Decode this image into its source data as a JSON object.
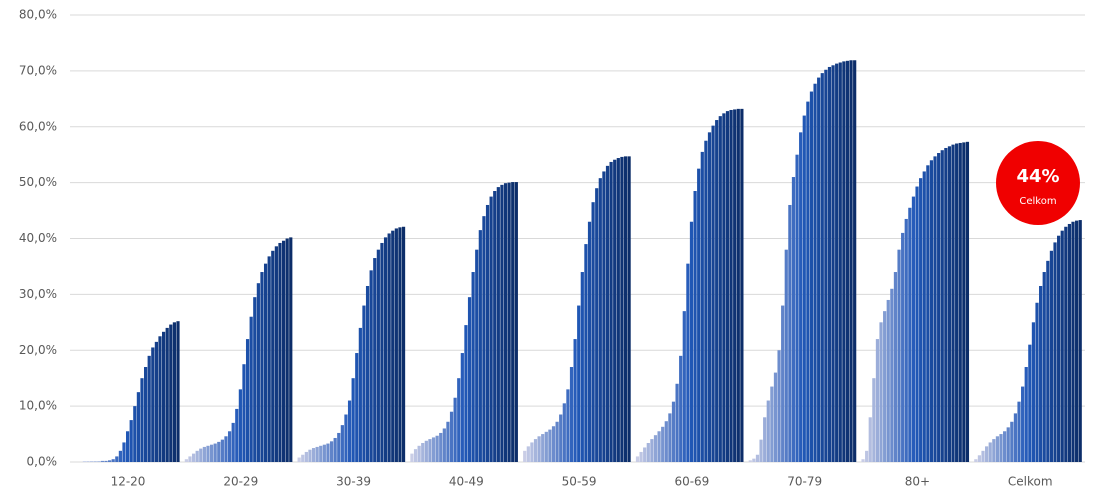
{
  "chart_data": {
    "type": "bar",
    "categories": [
      "12-20",
      "20-29",
      "30-39",
      "40-49",
      "50-59",
      "60-69",
      "70-79",
      "80+",
      "Celkom"
    ],
    "values": [
      [
        0,
        0,
        0,
        0.1,
        0.1,
        0.1,
        0.1,
        0.1,
        0.2,
        0.2,
        0.3,
        0.5,
        1,
        2,
        3.5,
        5.5,
        7.5,
        10,
        12.5,
        15,
        17,
        19,
        20.5,
        21.5,
        22.5,
        23.3,
        24,
        24.6,
        25,
        25.2
      ],
      [
        0.5,
        1,
        1.5,
        2,
        2.4,
        2.7,
        2.9,
        3.1,
        3.3,
        3.6,
        4,
        4.6,
        5.5,
        7,
        9.5,
        13,
        17.5,
        22,
        26,
        29.5,
        32,
        34,
        35.5,
        36.8,
        37.8,
        38.6,
        39.2,
        39.6,
        40,
        40.2
      ],
      [
        0.8,
        1.3,
        1.8,
        2.2,
        2.5,
        2.7,
        2.9,
        3.1,
        3.3,
        3.7,
        4.3,
        5.2,
        6.6,
        8.5,
        11,
        15,
        19.5,
        24,
        28,
        31.5,
        34.3,
        36.5,
        38,
        39.2,
        40.2,
        40.9,
        41.4,
        41.8,
        42,
        42.1
      ],
      [
        1.5,
        2.3,
        2.9,
        3.4,
        3.8,
        4.1,
        4.4,
        4.7,
        5.2,
        6,
        7.2,
        9,
        11.5,
        15,
        19.5,
        24.5,
        29.5,
        34,
        38,
        41.5,
        44,
        46,
        47.5,
        48.5,
        49.2,
        49.6,
        49.9,
        50,
        50.1,
        50.1
      ],
      [
        2,
        2.8,
        3.5,
        4.1,
        4.6,
        5,
        5.4,
        5.8,
        6.4,
        7.2,
        8.5,
        10.5,
        13,
        17,
        22,
        28,
        34,
        39,
        43,
        46.5,
        49,
        50.8,
        52,
        53,
        53.7,
        54.1,
        54.4,
        54.6,
        54.7,
        54.7
      ],
      [
        1,
        1.8,
        2.6,
        3.4,
        4.1,
        4.8,
        5.5,
        6.3,
        7.3,
        8.7,
        10.8,
        14,
        19,
        27,
        35.5,
        43,
        48.5,
        52.5,
        55.5,
        57.5,
        59,
        60.2,
        61.2,
        61.9,
        62.4,
        62.8,
        63,
        63.1,
        63.2,
        63.2
      ],
      [
        0.3,
        0.6,
        1.3,
        4,
        8,
        11,
        13.5,
        16,
        20,
        28,
        38,
        46,
        51,
        55,
        59,
        62,
        64.5,
        66.3,
        67.7,
        68.8,
        69.6,
        70.2,
        70.7,
        71,
        71.3,
        71.5,
        71.7,
        71.8,
        71.9,
        71.9
      ],
      [
        0.5,
        2,
        8,
        15,
        22,
        25,
        27,
        29,
        31,
        34,
        38,
        41,
        43.5,
        45.5,
        47.5,
        49.3,
        50.8,
        52,
        53.1,
        54,
        54.7,
        55.3,
        55.8,
        56.2,
        56.5,
        56.8,
        57,
        57.1,
        57.2,
        57.3
      ],
      [
        0.5,
        1.2,
        2,
        2.8,
        3.5,
        4.1,
        4.6,
        5,
        5.5,
        6.2,
        7.2,
        8.7,
        10.8,
        13.5,
        17,
        21,
        25,
        28.5,
        31.5,
        34,
        36,
        37.8,
        39.3,
        40.5,
        41.4,
        42.1,
        42.6,
        43,
        43.2,
        43.3
      ]
    ],
    "colors": [
      "#c9cde6",
      "#2158b8",
      "#0c2d69"
    ],
    "ylim": [
      0,
      80
    ],
    "yticks": [
      {
        "value": 0,
        "label": "0,0%"
      },
      {
        "value": 10,
        "label": "10,0%"
      },
      {
        "value": 20,
        "label": "20,0%"
      },
      {
        "value": 30,
        "label": "30,0%"
      },
      {
        "value": 40,
        "label": "40,0%"
      },
      {
        "value": 50,
        "label": "50,0%"
      },
      {
        "value": 60,
        "label": "60,0%"
      },
      {
        "value": 70,
        "label": "70,0%"
      },
      {
        "value": 80,
        "label": "80,0%"
      }
    ],
    "grid": true,
    "annotation": {
      "value": "44%",
      "label": "Celkom",
      "color": "#f00000"
    }
  }
}
